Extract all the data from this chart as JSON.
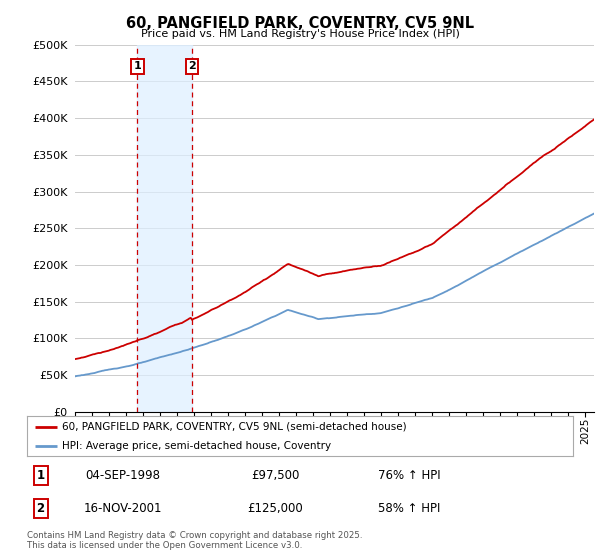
{
  "title": "60, PANGFIELD PARK, COVENTRY, CV5 9NL",
  "subtitle": "Price paid vs. HM Land Registry's House Price Index (HPI)",
  "ylabel_ticks": [
    "£0",
    "£50K",
    "£100K",
    "£150K",
    "£200K",
    "£250K",
    "£300K",
    "£350K",
    "£400K",
    "£450K",
    "£500K"
  ],
  "ytick_values": [
    0,
    50000,
    100000,
    150000,
    200000,
    250000,
    300000,
    350000,
    400000,
    450000,
    500000
  ],
  "ylim": [
    0,
    500000
  ],
  "xlim_start": 1995.0,
  "xlim_end": 2025.5,
  "purchase1": {
    "date_label": "04-SEP-1998",
    "price": 97500,
    "x": 1998.67,
    "label": "1",
    "pct": "76%",
    "dir": "↑"
  },
  "purchase2": {
    "date_label": "16-NOV-2001",
    "price": 125000,
    "x": 2001.87,
    "label": "2",
    "pct": "58%",
    "dir": "↑"
  },
  "legend_line1": "60, PANGFIELD PARK, COVENTRY, CV5 9NL (semi-detached house)",
  "legend_line2": "HPI: Average price, semi-detached house, Coventry",
  "footer": "Contains HM Land Registry data © Crown copyright and database right 2025.\nThis data is licensed under the Open Government Licence v3.0.",
  "line_color_red": "#cc0000",
  "line_color_blue": "#6699cc",
  "vline_color": "#cc0000",
  "shaded_color": "#ddeeff",
  "annotation_box_color": "#cc0000",
  "background_color": "#ffffff",
  "grid_color": "#cccccc"
}
